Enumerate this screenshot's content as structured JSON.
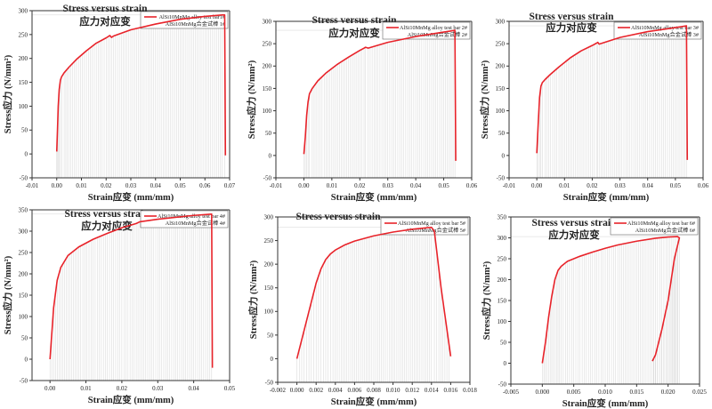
{
  "colors": {
    "series": "#e8232a",
    "axis": "#333333",
    "drop_lines": "#c9c9c9"
  },
  "chart_data": [
    {
      "type": "line",
      "title": "Stress versus strain",
      "subtitle": "应力对应变",
      "xlabel": "Strain应变 (mm/mm)",
      "ylabel": "Stress应力 (N/mm²)",
      "xlim": [
        -0.01,
        0.07
      ],
      "ylim": [
        -50,
        300
      ],
      "x_ticks": [
        -0.01,
        0.0,
        0.01,
        0.02,
        0.03,
        0.04,
        0.05,
        0.06,
        0.07
      ],
      "x_tick_labels": [
        "-0.01",
        "0.00",
        "0.01",
        "0.02",
        "0.03",
        "0.04",
        "0.05",
        "0.06",
        "0.07"
      ],
      "y_ticks": [
        -50,
        0,
        50,
        100,
        150,
        200,
        250,
        300
      ],
      "legend": {
        "position": "top-right",
        "entries": [
          "AlSi10MnMg alloy test bar1#",
          "AlSi10MnMg合金试棒 1#"
        ]
      },
      "series": [
        {
          "x": [
            0.0,
            0.0003,
            0.0006,
            0.001,
            0.0015,
            0.002,
            0.003,
            0.005,
            0.008,
            0.012,
            0.016,
            0.02,
            0.0215,
            0.0222,
            0.023,
            0.03,
            0.04,
            0.05,
            0.06,
            0.067,
            0.068,
            0.0683
          ],
          "y": [
            5,
            50,
            100,
            135,
            155,
            162,
            170,
            182,
            198,
            216,
            232,
            243,
            248,
            244,
            247,
            260,
            272,
            282,
            288,
            291,
            291,
            -3
          ]
        }
      ]
    },
    {
      "type": "line",
      "title": "Stress versus strain",
      "subtitle": "应力对应变",
      "xlabel": "Strain应变 (mm/mm)",
      "ylabel": "Stress应力 (N/mm²)",
      "xlim": [
        -0.01,
        0.06
      ],
      "ylim": [
        -50,
        300
      ],
      "x_ticks": [
        -0.01,
        0.0,
        0.01,
        0.02,
        0.03,
        0.04,
        0.05,
        0.06
      ],
      "x_tick_labels": [
        "-0.01",
        "0.00",
        "0.01",
        "0.02",
        "0.03",
        "0.04",
        "0.05",
        "0.06"
      ],
      "y_ticks": [
        -50,
        0,
        50,
        100,
        150,
        200,
        250,
        300
      ],
      "legend": {
        "position": "top-right",
        "entries": [
          "AlSi10MnMg alloy test bar 2#",
          "AlSi10MnMg合金试棒 2#"
        ]
      },
      "series": [
        {
          "x": [
            0.0,
            0.0005,
            0.001,
            0.0015,
            0.002,
            0.003,
            0.005,
            0.008,
            0.012,
            0.016,
            0.02,
            0.0215,
            0.022,
            0.023,
            0.03,
            0.04,
            0.05,
            0.054,
            0.0543
          ],
          "y": [
            3,
            40,
            90,
            120,
            138,
            150,
            167,
            185,
            204,
            220,
            235,
            240,
            242,
            240,
            253,
            266,
            276,
            280,
            -12
          ]
        }
      ]
    },
    {
      "type": "line",
      "title": "Stress versus strain",
      "subtitle": "应力对应变",
      "xlabel": "Strain应变 (mm/mm)",
      "ylabel": "Stress应力 (N/mm²)",
      "xlim": [
        -0.01,
        0.06
      ],
      "ylim": [
        -50,
        300
      ],
      "x_ticks": [
        -0.01,
        0.0,
        0.01,
        0.02,
        0.03,
        0.04,
        0.05,
        0.06
      ],
      "x_tick_labels": [
        "-0.01",
        "0.00",
        "0.01",
        "0.02",
        "0.03",
        "0.04",
        "0.05",
        "0.06"
      ],
      "y_ticks": [
        -50,
        0,
        50,
        100,
        150,
        200,
        250,
        300
      ],
      "legend": {
        "position": "top-right",
        "entries": [
          "AlSi10MnMg alloy test bar 3#",
          "AlSi10MnMg合金试棒 3#"
        ]
      },
      "series": [
        {
          "x": [
            0.0,
            0.0005,
            0.001,
            0.0015,
            0.002,
            0.003,
            0.005,
            0.008,
            0.012,
            0.016,
            0.02,
            0.0215,
            0.022,
            0.0225,
            0.03,
            0.04,
            0.05,
            0.054,
            0.0543
          ],
          "y": [
            5,
            70,
            130,
            155,
            163,
            170,
            182,
            198,
            218,
            234,
            246,
            251,
            253,
            249,
            264,
            277,
            286,
            290,
            -10
          ]
        }
      ]
    },
    {
      "type": "line",
      "title": "Stress versus strain",
      "subtitle": "应力对应变",
      "xlabel": "Strain应变 (mm/mm)",
      "ylabel": "Stress应力 (N/mm²)",
      "xlim": [
        -0.005,
        0.05
      ],
      "ylim": [
        -50,
        350
      ],
      "x_ticks": [
        0.0,
        0.01,
        0.02,
        0.03,
        0.04,
        0.05
      ],
      "x_tick_labels": [
        "0.00",
        "0.01",
        "0.02",
        "0.03",
        "0.04",
        "0.05"
      ],
      "y_ticks": [
        -50,
        0,
        50,
        100,
        150,
        200,
        250,
        300,
        350
      ],
      "legend": {
        "position": "top-right",
        "entries": [
          "AlSi10MnMg alloy test bar 4#",
          "AlSi10MnMg合金试棒 4#"
        ]
      },
      "series": [
        {
          "x": [
            0.0,
            0.0005,
            0.001,
            0.002,
            0.003,
            0.005,
            0.008,
            0.012,
            0.016,
            0.02,
            0.024,
            0.025,
            0.03,
            0.04,
            0.045,
            0.0452
          ],
          "y": [
            0,
            60,
            120,
            185,
            215,
            243,
            263,
            281,
            295,
            308,
            318,
            322,
            328,
            337,
            340,
            -20
          ]
        }
      ]
    },
    {
      "type": "line",
      "title": "Stress versus strain",
      "subtitle": "",
      "xlabel": "Strain应变 (mm/mm)",
      "ylabel": "Stress应力 (N/mm²)",
      "xlim": [
        -0.002,
        0.018
      ],
      "ylim": [
        -50,
        300
      ],
      "x_ticks": [
        -0.002,
        0.0,
        0.002,
        0.004,
        0.006,
        0.008,
        0.01,
        0.012,
        0.014,
        0.016,
        0.018
      ],
      "x_tick_labels": [
        "-0.002",
        "0.000",
        "0.002",
        "0.004",
        "0.006",
        "0.008",
        "0.010",
        "0.012",
        "0.014",
        "0.016",
        "0.018"
      ],
      "y_ticks": [
        -50,
        0,
        50,
        100,
        150,
        200,
        250,
        300
      ],
      "legend": {
        "position": "top-right",
        "entries": [
          "AlSi10MnMg alloy test bar 5#",
          "AlSi10MnMg合金试棒 5#"
        ]
      },
      "series": [
        {
          "x": [
            0.0,
            0.0005,
            0.001,
            0.0015,
            0.002,
            0.0025,
            0.003,
            0.0035,
            0.004,
            0.005,
            0.006,
            0.008,
            0.01,
            0.012,
            0.014,
            0.0143,
            0.015,
            0.016
          ],
          "y": [
            0,
            40,
            80,
            120,
            160,
            190,
            210,
            222,
            230,
            241,
            249,
            260,
            268,
            274,
            278,
            270,
            150,
            5
          ]
        }
      ]
    },
    {
      "type": "line",
      "title": "Stress versus strain",
      "subtitle": "应力对应变",
      "xlabel": "Strain应变 (mm/mm)",
      "ylabel": "Stress应力 (N/mm²)",
      "xlim": [
        -0.005,
        0.025
      ],
      "ylim": [
        -50,
        350
      ],
      "x_ticks": [
        -0.005,
        0.0,
        0.005,
        0.01,
        0.015,
        0.02,
        0.025
      ],
      "x_tick_labels": [
        "-0.005",
        "0.000",
        "0.005",
        "0.010",
        "0.015",
        "0.020",
        "0.025"
      ],
      "y_ticks": [
        -50,
        0,
        50,
        100,
        150,
        200,
        250,
        300,
        350
      ],
      "legend": {
        "position": "top-right",
        "entries": [
          "AlSi10MnMg alloy test bar 6#",
          "AlSi10MnMg合金试棒 6#"
        ]
      },
      "series": [
        {
          "x": [
            0.0,
            0.0005,
            0.001,
            0.0015,
            0.002,
            0.0025,
            0.003,
            0.004,
            0.006,
            0.008,
            0.01,
            0.012,
            0.015,
            0.018,
            0.02,
            0.0215,
            0.0218,
            0.021,
            0.02,
            0.019,
            0.018,
            0.0175
          ],
          "y": [
            0,
            50,
            110,
            160,
            200,
            222,
            232,
            244,
            256,
            266,
            275,
            283,
            292,
            299,
            302,
            303,
            300,
            250,
            150,
            80,
            20,
            5
          ]
        }
      ]
    }
  ]
}
